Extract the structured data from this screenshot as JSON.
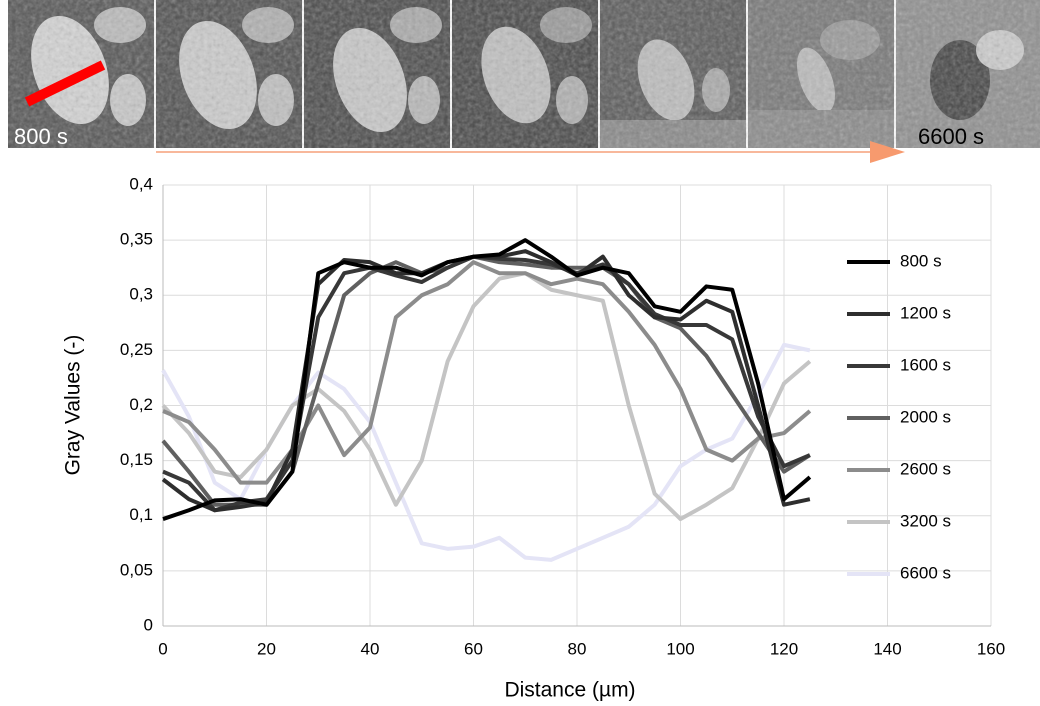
{
  "image_strip": {
    "start_label": "800 s",
    "end_label": "6600 s"
  },
  "chart_data": {
    "type": "line",
    "x_label": "Distance (µm)",
    "y_label": "Gray Values (-)",
    "x": [
      0,
      5,
      10,
      15,
      20,
      25,
      30,
      35,
      40,
      45,
      50,
      55,
      60,
      65,
      70,
      75,
      80,
      85,
      90,
      95,
      100,
      105,
      110,
      115,
      120,
      125
    ],
    "series": [
      {
        "name": "800 s",
        "color": "#000000",
        "values": [
          0.097,
          0.105,
          0.114,
          0.115,
          0.11,
          0.14,
          0.32,
          0.33,
          0.325,
          0.325,
          0.318,
          0.33,
          0.335,
          0.337,
          0.35,
          0.335,
          0.318,
          0.325,
          0.32,
          0.29,
          0.285,
          0.308,
          0.305,
          0.22,
          0.115,
          0.135
        ]
      },
      {
        "name": "1200 s",
        "color": "#2e2e2e",
        "values": [
          0.133,
          0.115,
          0.105,
          0.108,
          0.112,
          0.16,
          0.31,
          0.332,
          0.33,
          0.32,
          0.32,
          0.33,
          0.335,
          0.335,
          0.34,
          0.33,
          0.318,
          0.335,
          0.3,
          0.28,
          0.278,
          0.295,
          0.285,
          0.2,
          0.11,
          0.115
        ]
      },
      {
        "name": "1600 s",
        "color": "#383838",
        "values": [
          0.14,
          0.13,
          0.105,
          0.112,
          0.115,
          0.15,
          0.28,
          0.32,
          0.325,
          0.318,
          0.312,
          0.325,
          0.335,
          0.333,
          0.332,
          0.328,
          0.32,
          0.328,
          0.31,
          0.283,
          0.273,
          0.273,
          0.26,
          0.19,
          0.145,
          0.155
        ]
      },
      {
        "name": "2000 s",
        "color": "#606060",
        "values": [
          0.168,
          0.14,
          0.11,
          0.11,
          0.11,
          0.14,
          0.22,
          0.3,
          0.32,
          0.33,
          0.32,
          0.325,
          0.335,
          0.33,
          0.328,
          0.325,
          0.325,
          0.325,
          0.31,
          0.28,
          0.27,
          0.245,
          0.21,
          0.175,
          0.14,
          0.155
        ]
      },
      {
        "name": "2600 s",
        "color": "#8c8c8c",
        "values": [
          0.195,
          0.185,
          0.16,
          0.13,
          0.13,
          0.16,
          0.2,
          0.155,
          0.18,
          0.28,
          0.3,
          0.31,
          0.33,
          0.32,
          0.32,
          0.31,
          0.315,
          0.31,
          0.285,
          0.255,
          0.215,
          0.16,
          0.15,
          0.17,
          0.175,
          0.195
        ]
      },
      {
        "name": "3200 s",
        "color": "#c4c4c4",
        "values": [
          0.2,
          0.175,
          0.14,
          0.135,
          0.16,
          0.2,
          0.215,
          0.195,
          0.16,
          0.11,
          0.15,
          0.24,
          0.29,
          0.315,
          0.32,
          0.305,
          0.3,
          0.295,
          0.2,
          0.12,
          0.097,
          0.11,
          0.125,
          0.17,
          0.22,
          0.24
        ]
      },
      {
        "name": "6600 s",
        "color": "#e4e4f6",
        "values": [
          0.232,
          0.19,
          0.13,
          0.115,
          0.16,
          0.2,
          0.23,
          0.215,
          0.185,
          0.13,
          0.075,
          0.07,
          0.072,
          0.08,
          0.062,
          0.06,
          0.07,
          0.08,
          0.09,
          0.11,
          0.145,
          0.16,
          0.17,
          0.21,
          0.255,
          0.25
        ]
      }
    ],
    "xlim": [
      0,
      160
    ],
    "xticks": [
      0,
      20,
      40,
      60,
      80,
      100,
      120,
      140,
      160
    ],
    "ylim": [
      0,
      0.4
    ],
    "yticks": [
      0,
      {
        "value": 0.05,
        "label": "0,05"
      },
      {
        "value": 0.1,
        "label": "0,1"
      },
      {
        "value": 0.15,
        "label": "0,15"
      },
      {
        "value": 0.2,
        "label": "0,2"
      },
      {
        "value": 0.25,
        "label": "0,25"
      },
      {
        "value": 0.3,
        "label": "0,3"
      },
      {
        "value": 0.35,
        "label": "0,35"
      },
      {
        "value": 0.4,
        "label": "0,4"
      }
    ],
    "grid": true
  }
}
